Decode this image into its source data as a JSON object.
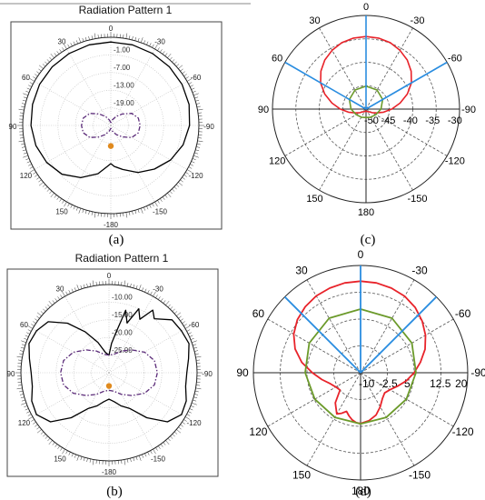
{
  "figure": {
    "captions": [
      "(a)",
      "(b)",
      "(c)",
      "(d)"
    ]
  },
  "chart_data": [
    {
      "panel": "(a)",
      "type": "polar",
      "title": "Radiation Pattern 1",
      "angle_ticks": [
        "0",
        "30",
        "60",
        "90",
        "120",
        "150",
        "-180",
        "-150",
        "-120",
        "-90",
        "-60",
        "-30"
      ],
      "radial_ticks": [
        "-1.00",
        "-7.00",
        "-13.00",
        "-19.00"
      ],
      "rlim": [
        -25,
        5
      ],
      "grid": true,
      "series": [
        {
          "style": "solid",
          "color": "#000000",
          "theta": [
            0,
            15,
            30,
            45,
            60,
            75,
            90,
            105,
            120,
            135,
            150,
            165,
            175,
            180,
            185,
            195,
            210,
            225,
            240,
            255,
            270,
            285,
            300,
            315,
            330,
            345
          ],
          "r": [
            3.4,
            3.4,
            3.3,
            3.2,
            3.0,
            2.6,
            2.2,
            1.4,
            0.2,
            -1.5,
            -4.5,
            -8,
            -11,
            -12,
            -11,
            -9.5,
            -6.5,
            -4,
            -1.5,
            0.5,
            1.8,
            2.6,
            3.0,
            3.2,
            3.3,
            3.4
          ]
        },
        {
          "style": "dash-dot",
          "color": "#5a2a78",
          "theta": [
            0,
            15,
            30,
            45,
            60,
            75,
            90,
            105,
            120,
            135,
            150,
            165,
            180,
            195,
            210,
            225,
            240,
            255,
            270,
            285,
            300,
            315,
            330,
            345
          ],
          "r": [
            -24,
            -23,
            -21.5,
            -19.5,
            -16.8,
            -15.3,
            -15,
            -15.3,
            -16.8,
            -19.5,
            -21.5,
            -23,
            -24,
            -23,
            -21.5,
            -19.5,
            -16.8,
            -15.3,
            -15,
            -15.3,
            -16.8,
            -19.5,
            -21.5,
            -23
          ]
        }
      ],
      "marker": {
        "theta": 180,
        "r": -18,
        "color": "#e08a1e"
      }
    },
    {
      "panel": "(b)",
      "type": "polar",
      "title": "Radiation Pattern 1",
      "angle_ticks": [
        "0",
        "30",
        "60",
        "90",
        "120",
        "150",
        "-180",
        "-150",
        "-120",
        "-90",
        "-60",
        "-30"
      ],
      "radial_ticks": [
        "-10.00",
        "-15.00",
        "-20.00",
        "-25.00"
      ],
      "rlim": [
        -30,
        0
      ],
      "grid": true,
      "series": [
        {
          "style": "solid",
          "color": "#000000",
          "theta": [
            0,
            10,
            20,
            30,
            40,
            50,
            60,
            70,
            80,
            90,
            100,
            110,
            120,
            130,
            140,
            150,
            160,
            170,
            180,
            190,
            200,
            210,
            220,
            230,
            240,
            250,
            260,
            270,
            280,
            290,
            300,
            310,
            320,
            325,
            330,
            335,
            340,
            345,
            350,
            355
          ],
          "r": [
            -24,
            -23,
            -19,
            -14,
            -8,
            -3,
            -1.5,
            -1,
            -2.5,
            -3.5,
            -3.5,
            -2,
            -1.5,
            -4,
            -10,
            -16,
            -18,
            -20,
            -21,
            -20,
            -18,
            -16,
            -10,
            -4,
            -1.5,
            -2,
            -3.5,
            -3.5,
            -2.5,
            -1,
            -1.5,
            -2,
            -6,
            -4,
            -9,
            -6,
            -12,
            -8,
            -16,
            -20
          ]
        },
        {
          "style": "dash-dot",
          "color": "#5a2a78",
          "theta": [
            0,
            15,
            30,
            45,
            60,
            75,
            90,
            105,
            120,
            135,
            150,
            165,
            180,
            195,
            210,
            225,
            240,
            255,
            270,
            285,
            300,
            315,
            330,
            345
          ],
          "r": [
            -24,
            -23.5,
            -21.5,
            -19,
            -16,
            -14,
            -13.5,
            -14,
            -16,
            -19,
            -21.5,
            -23.5,
            -24,
            -23.5,
            -21.5,
            -19,
            -16,
            -14,
            -13.5,
            -14,
            -16,
            -19,
            -21.5,
            -23.5
          ]
        }
      ],
      "marker": {
        "theta": 180,
        "r": -25.5,
        "color": "#e08a1e"
      }
    },
    {
      "panel": "(c)",
      "type": "polar",
      "angle_ticks": [
        "0",
        "30",
        "60",
        "90",
        "120",
        "150",
        "180",
        "-150",
        "-120",
        "-90",
        "-60",
        "-30"
      ],
      "radial_ticks": [
        "-50",
        "-45",
        "-40",
        "-35",
        "-30"
      ],
      "rlim": [
        -50,
        -30
      ],
      "grid": true,
      "series": [
        {
          "style": "solid",
          "color": "#e8232a",
          "theta": [
            0,
            10,
            20,
            30,
            40,
            50,
            60,
            70,
            80,
            90,
            100,
            110,
            120,
            135,
            150,
            165,
            180,
            195,
            210,
            225,
            240,
            250,
            260,
            270,
            280,
            290,
            300,
            310,
            320,
            330,
            340,
            350
          ],
          "r": [
            -34.5,
            -34.6,
            -34.9,
            -35.5,
            -36.3,
            -37.4,
            -38.8,
            -40.6,
            -42.6,
            -44.5,
            -46.2,
            -47.6,
            -48.5,
            -49.2,
            -49.4,
            -49.5,
            -49.6,
            -49.5,
            -49.4,
            -49.2,
            -48.5,
            -47.6,
            -46.2,
            -44.5,
            -42.6,
            -40.6,
            -38.8,
            -37.4,
            -36.3,
            -35.5,
            -34.9,
            -34.6
          ]
        },
        {
          "style": "solid",
          "color": "#6b9a2a",
          "theta": [
            0,
            30,
            60,
            90,
            120,
            150,
            180,
            210,
            240,
            270,
            300,
            330
          ],
          "r": [
            -45.1,
            -45.3,
            -45.9,
            -46.8,
            -47.6,
            -48.0,
            -48.2,
            -48.0,
            -47.6,
            -46.8,
            -45.9,
            -45.3
          ]
        },
        {
          "style": "solid",
          "color": "#2a8de0",
          "kind": "beam-lines",
          "theta": [
            -60,
            0,
            60
          ]
        }
      ]
    },
    {
      "panel": "(d)",
      "type": "polar",
      "angle_ticks": [
        "0",
        "30",
        "60",
        "90",
        "120",
        "150",
        "180",
        "-150",
        "-120",
        "-90",
        "-60",
        "-30"
      ],
      "radial_ticks": [
        "-10",
        "-2.5",
        "5",
        "12.5",
        "20"
      ],
      "rlim": [
        -10,
        20
      ],
      "grid": true,
      "series": [
        {
          "style": "solid",
          "color": "#e8232a",
          "theta": [
            0,
            10,
            20,
            30,
            40,
            50,
            60,
            70,
            80,
            90,
            100,
            110,
            120,
            130,
            140,
            150,
            155,
            160,
            165,
            170,
            175,
            180,
            190,
            200,
            210,
            220,
            230,
            240,
            250,
            260,
            270,
            280,
            290,
            300,
            310,
            320,
            330,
            340,
            350
          ],
          "r": [
            15.6,
            15.5,
            15.2,
            14.8,
            14.1,
            13.1,
            11.6,
            9.5,
            6.7,
            3.5,
            1.0,
            -1.0,
            -2.0,
            -2.5,
            1.0,
            3.3,
            2.5,
            1.5,
            2.5,
            3.4,
            4.0,
            4.2,
            3.6,
            2.6,
            1.0,
            -0.5,
            -1.2,
            -0.5,
            1.0,
            3.0,
            5.0,
            7.0,
            9.2,
            11.0,
            12.5,
            13.8,
            14.7,
            15.2,
            15.5
          ]
        },
        {
          "style": "solid",
          "color": "#6b9a2a",
          "theta": [
            0,
            30,
            60,
            90,
            120,
            150,
            180,
            210,
            240,
            270,
            300,
            330
          ],
          "r": [
            7.8,
            7.6,
            6.6,
            5.5,
            4.8,
            4.4,
            4.3,
            4.4,
            4.8,
            5.5,
            6.6,
            7.6
          ]
        },
        {
          "style": "solid",
          "color": "#2a8de0",
          "kind": "beam-lines",
          "theta": [
            -45,
            0,
            45
          ]
        }
      ]
    }
  ]
}
